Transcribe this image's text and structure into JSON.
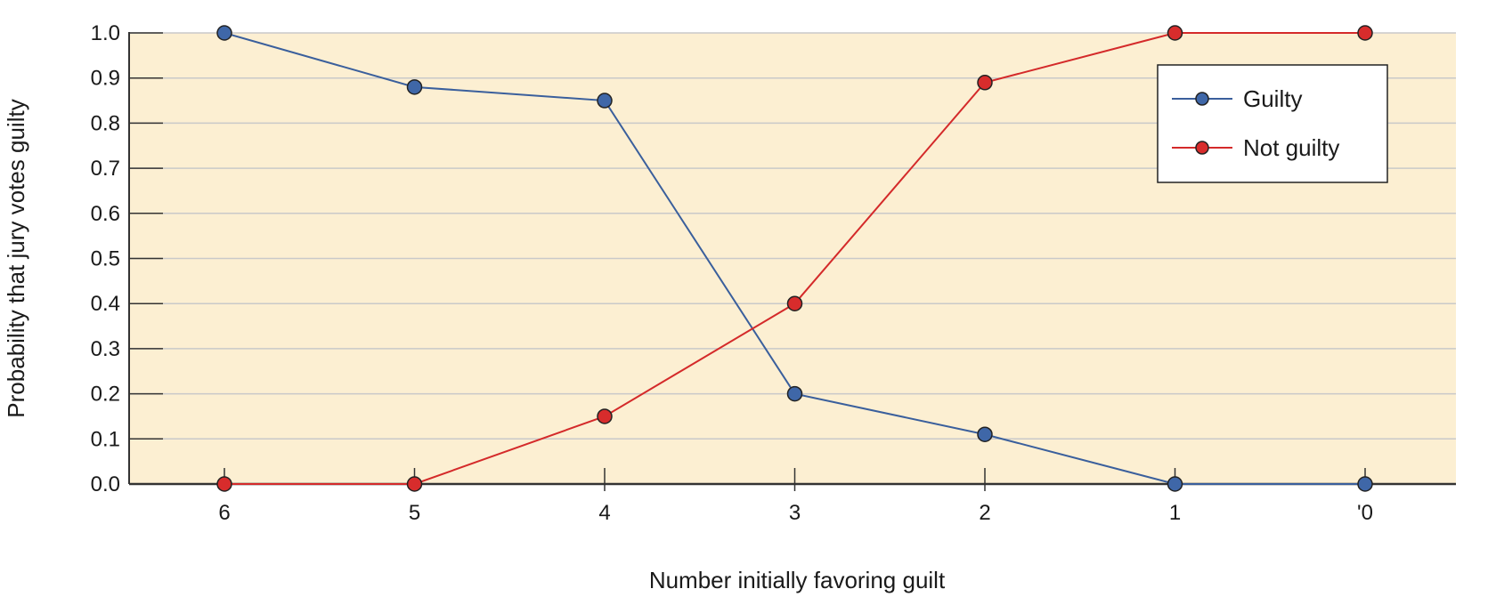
{
  "chart_data": {
    "type": "line",
    "title": "",
    "xlabel": "Number initially favoring guilt",
    "ylabel": "Probability that jury votes guilty",
    "categories": [
      "6",
      "5",
      "4",
      "3",
      "2",
      "1",
      "'0"
    ],
    "ylim": [
      0,
      1.0
    ],
    "yticks": [
      "0.0",
      "0.1",
      "0.2",
      "0.3",
      "0.4",
      "0.5",
      "0.6",
      "0.7",
      "0.8",
      "0.9",
      "1.0"
    ],
    "grid": true,
    "legend_position": "top-right",
    "series": [
      {
        "name": "Guilty",
        "values": [
          1.0,
          0.88,
          0.85,
          0.2,
          0.11,
          0.0,
          0.0
        ],
        "color": "#3a5f9c",
        "marker_color": "#3f67a8"
      },
      {
        "name": "Not guilty",
        "values": [
          0.0,
          0.0,
          0.15,
          0.4,
          0.89,
          1.0,
          1.0
        ],
        "color": "#d42a2a",
        "marker_color": "#d82c2c"
      }
    ],
    "colors": {
      "plot_background": "#fcefd2",
      "gridline": "#c9c9c9",
      "axis": "#333333"
    }
  }
}
